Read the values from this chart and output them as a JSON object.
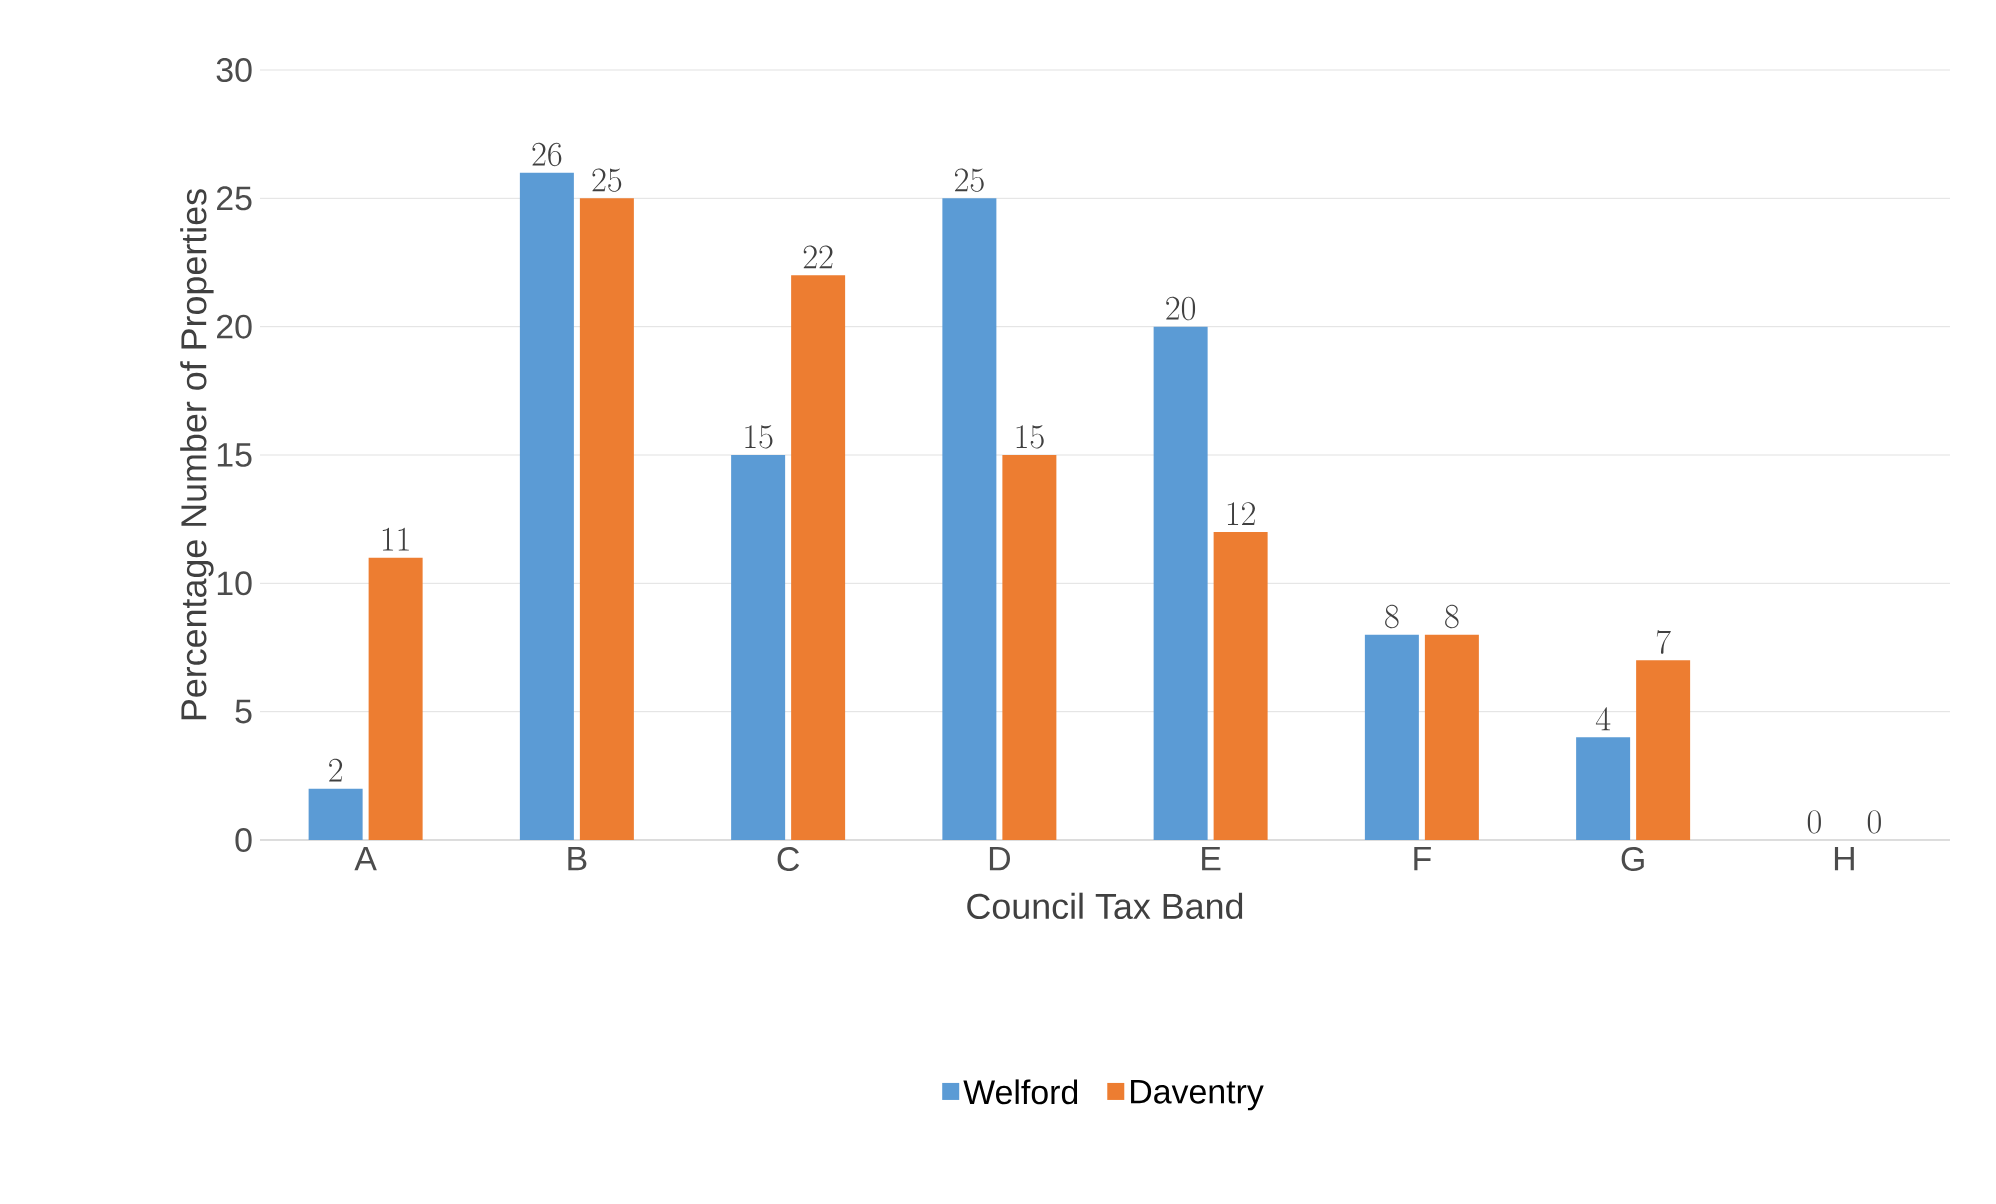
{
  "chart_data": {
    "type": "bar",
    "xlabel": "Council Tax Band",
    "ylabel": "Percentage Number of Properties",
    "categories": [
      "A",
      "B",
      "C",
      "D",
      "E",
      "F",
      "G",
      "H"
    ],
    "series": [
      {
        "name": "Welford",
        "color": "#5b9bd5",
        "values": [
          2,
          26,
          15,
          25,
          20,
          8,
          4,
          0
        ]
      },
      {
        "name": "Daventry",
        "color": "#ed7d31",
        "values": [
          11,
          25,
          22,
          15,
          12,
          8,
          7,
          0
        ]
      }
    ],
    "ylim": [
      0,
      30
    ],
    "yticks": [
      0,
      5,
      10,
      15,
      20,
      25,
      30
    ],
    "grid": "y",
    "legend": "bottom",
    "data_labels": true
  }
}
